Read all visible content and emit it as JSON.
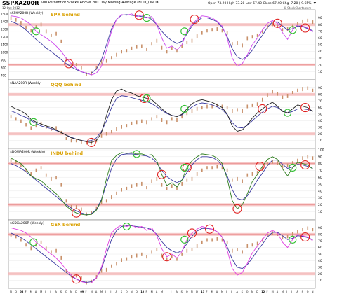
{
  "header": {
    "symbol": "$SPXA200R",
    "description": "(S&P 500 Percent of Stocks Above 200 Day Moving Average (EOD)) INDX",
    "date": "12-Oct-2012",
    "ohlc": "Open 73.20  High 73.20  Low 67.40  Close 67.40  Chg -7.20 (-9.65%) ▼",
    "watermark": "© StockCharts.com"
  },
  "colors": {
    "price_bar": "#c8906a",
    "pct_above_200dma": "#3a3aa0",
    "spx": "#cc44ee",
    "qqq": "#222222",
    "indu": "#2e7d1e",
    "gex": "#e040e0",
    "band": "#f4b8b8",
    "red_circle": "#e02020",
    "green_circle": "#30c030"
  },
  "x_axis": {
    "month_labels": [
      "N",
      "D",
      "08",
      "F",
      "M",
      "A",
      "M",
      "J",
      "J",
      "A",
      "S",
      "O",
      "N",
      "D",
      "09",
      "F",
      "M",
      "A",
      "M",
      "J",
      "J",
      "A",
      "S",
      "O",
      "N",
      "D",
      "10",
      "F",
      "M",
      "A",
      "M",
      "J",
      "J",
      "A",
      "S",
      "O",
      "N",
      "D",
      "11",
      "F",
      "M",
      "A",
      "M",
      "J",
      "J",
      "A",
      "S",
      "O",
      "N",
      "D",
      "12",
      "F",
      "M",
      "A",
      "M",
      "J",
      "J",
      "A",
      "S",
      "O",
      "N"
    ],
    "bold_labels": [
      "08",
      "09",
      "10",
      "11",
      "12"
    ]
  },
  "chart_data": [
    {
      "type": "line",
      "label": "$SPXA200R (Weekly)",
      "overlay_label": "SPX behind",
      "ylim": [
        0,
        100
      ],
      "y_ticks_right": [
        10,
        20,
        30,
        40,
        50,
        60,
        70,
        80,
        90
      ],
      "y_ticks_left": [
        700,
        800,
        900,
        1000,
        1100,
        1200,
        1300,
        1400,
        1500
      ],
      "bands": [
        80,
        20
      ],
      "series": [
        {
          "name": "SPX",
          "values": [
            93,
            92,
            90,
            85,
            80,
            70,
            65,
            60,
            55,
            48,
            40,
            30,
            22,
            15,
            10,
            8,
            5,
            8,
            18,
            42,
            70,
            88,
            95,
            94,
            96,
            92,
            94,
            90,
            92,
            80,
            60,
            45,
            48,
            42,
            50,
            70,
            80,
            88,
            93,
            92,
            90,
            85,
            78,
            60,
            30,
            18,
            22,
            35,
            50,
            60,
            72,
            82,
            86,
            82,
            68,
            58,
            72,
            80,
            78,
            75,
            69
          ]
        },
        {
          "name": "Pct above 200 DMA",
          "values": [
            85,
            82,
            78,
            72,
            65,
            58,
            52,
            45,
            40,
            34,
            28,
            22,
            17,
            13,
            10,
            7,
            8,
            14,
            28,
            50,
            74,
            88,
            94,
            95,
            94,
            93,
            92,
            91,
            88,
            80,
            70,
            62,
            56,
            52,
            55,
            66,
            78,
            86,
            90,
            90,
            88,
            84,
            76,
            62,
            44,
            32,
            28,
            33,
            42,
            54,
            64,
            76,
            84,
            84,
            78,
            72,
            74,
            78,
            77,
            74,
            71
          ]
        },
        {
          "name": "Price",
          "values": [
            1480,
            1460,
            1420,
            1360,
            1320,
            1370,
            1400,
            1310,
            1260,
            1280,
            1180,
            950,
            880,
            880,
            840,
            760,
            770,
            840,
            920,
            930,
            970,
            1010,
            1050,
            1060,
            1090,
            1110,
            1120,
            1080,
            1150,
            1190,
            1100,
            1050,
            1090,
            1060,
            1120,
            1170,
            1190,
            1250,
            1290,
            1320,
            1330,
            1340,
            1320,
            1290,
            1150,
            1160,
            1130,
            1220,
            1240,
            1260,
            1310,
            1370,
            1400,
            1380,
            1330,
            1340,
            1380,
            1410,
            1440,
            1450,
            1430
          ]
        }
      ]
    },
    {
      "type": "line",
      "label": "$NAA200R (Weekly)",
      "overlay_label": "QQQ behind",
      "ylim": [
        0,
        100
      ],
      "y_ticks_right": [
        10,
        20,
        30,
        40,
        50,
        60,
        70,
        80,
        90
      ],
      "bands": [
        80,
        20
      ],
      "series": [
        {
          "name": "QQQ",
          "values": [
            62,
            58,
            55,
            50,
            42,
            38,
            35,
            32,
            30,
            26,
            22,
            18,
            14,
            12,
            10,
            8,
            7,
            10,
            22,
            48,
            72,
            85,
            88,
            84,
            82,
            78,
            76,
            74,
            72,
            65,
            58,
            52,
            48,
            46,
            50,
            58,
            66,
            70,
            72,
            70,
            68,
            64,
            60,
            50,
            32,
            24,
            26,
            34,
            44,
            52,
            58,
            64,
            68,
            62,
            54,
            52,
            58,
            64,
            62,
            60,
            54
          ]
        },
        {
          "name": "Pct above 200 DMA",
          "values": [
            55,
            52,
            48,
            45,
            40,
            36,
            32,
            30,
            28,
            25,
            22,
            18,
            15,
            12,
            10,
            9,
            10,
            14,
            24,
            40,
            60,
            74,
            78,
            77,
            75,
            73,
            71,
            69,
            66,
            61,
            56,
            51,
            48,
            47,
            49,
            55,
            61,
            65,
            67,
            66,
            64,
            61,
            57,
            49,
            37,
            30,
            29,
            33,
            40,
            47,
            53,
            58,
            62,
            60,
            55,
            52,
            54,
            58,
            58,
            57,
            55
          ]
        },
        {
          "name": "Price",
          "values": [
            47,
            45,
            43,
            40,
            37,
            39,
            41,
            38,
            36,
            37,
            33,
            28,
            26,
            26,
            25,
            24,
            24,
            26,
            30,
            32,
            34,
            36,
            38,
            39,
            41,
            42,
            43,
            42,
            45,
            47,
            44,
            42,
            45,
            44,
            47,
            50,
            52,
            54,
            55,
            56,
            56,
            57,
            56,
            55,
            52,
            53,
            52,
            56,
            57,
            58,
            62,
            66,
            69,
            67,
            64,
            65,
            68,
            70,
            71,
            72,
            70
          ]
        }
      ]
    },
    {
      "type": "line",
      "label": "$DOWA200R (Weekly)",
      "overlay_label": "INDU behind",
      "ylim": [
        0,
        100
      ],
      "y_ticks_right": [
        10,
        20,
        30,
        40,
        50,
        60,
        70,
        80,
        90,
        100
      ],
      "bands": [
        80,
        20
      ],
      "series": [
        {
          "name": "INDU",
          "values": [
            88,
            84,
            80,
            72,
            62,
            58,
            55,
            48,
            42,
            36,
            28,
            18,
            12,
            8,
            6,
            5,
            6,
            12,
            26,
            58,
            84,
            92,
            96,
            95,
            96,
            94,
            94,
            92,
            93,
            84,
            64,
            48,
            52,
            46,
            56,
            74,
            84,
            90,
            94,
            93,
            92,
            88,
            80,
            58,
            26,
            14,
            20,
            36,
            54,
            64,
            76,
            86,
            90,
            86,
            72,
            62,
            74,
            82,
            80,
            78,
            72
          ]
        },
        {
          "name": "Pct above 200 DMA",
          "values": [
            80,
            77,
            73,
            68,
            62,
            56,
            50,
            44,
            38,
            32,
            26,
            20,
            15,
            11,
            8,
            6,
            7,
            13,
            28,
            50,
            73,
            87,
            93,
            94,
            94,
            93,
            92,
            91,
            88,
            81,
            70,
            61,
            56,
            52,
            56,
            67,
            78,
            86,
            90,
            90,
            89,
            85,
            77,
            62,
            42,
            29,
            27,
            33,
            44,
            56,
            66,
            77,
            85,
            85,
            79,
            73,
            75,
            79,
            78,
            76,
            73
          ]
        },
        {
          "name": "Price",
          "values": [
            88,
            87,
            84,
            80,
            77,
            80,
            82,
            76,
            73,
            74,
            68,
            55,
            50,
            50,
            48,
            44,
            45,
            49,
            54,
            55,
            58,
            61,
            64,
            65,
            67,
            68,
            69,
            66,
            71,
            73,
            68,
            65,
            67,
            65,
            69,
            72,
            73,
            77,
            80,
            82,
            82,
            83,
            82,
            80,
            72,
            73,
            71,
            76,
            77,
            78,
            81,
            85,
            87,
            86,
            83,
            84,
            86,
            88,
            90,
            91,
            90
          ]
        }
      ]
    },
    {
      "type": "line",
      "label": "$GDXA200R (Weekly)",
      "overlay_label": "GEX behind",
      "ylim": [
        0,
        100
      ],
      "y_ticks_right": [
        10,
        20,
        30,
        40,
        50,
        60,
        70,
        80,
        90
      ],
      "bands": [
        80,
        20
      ],
      "series": [
        {
          "name": "GEX",
          "values": [
            90,
            88,
            86,
            82,
            76,
            68,
            62,
            56,
            50,
            44,
            36,
            26,
            18,
            12,
            8,
            6,
            6,
            14,
            30,
            58,
            82,
            90,
            94,
            92,
            94,
            90,
            92,
            86,
            90,
            78,
            58,
            46,
            50,
            44,
            54,
            72,
            82,
            88,
            92,
            90,
            88,
            84,
            76,
            56,
            28,
            18,
            22,
            36,
            52,
            62,
            72,
            82,
            86,
            82,
            68,
            60,
            72,
            80,
            78,
            76,
            70
          ]
        },
        {
          "name": "Pct above 200 DMA",
          "values": [
            82,
            79,
            75,
            70,
            64,
            58,
            52,
            46,
            40,
            34,
            28,
            22,
            16,
            12,
            9,
            7,
            8,
            14,
            28,
            50,
            72,
            86,
            92,
            93,
            93,
            92,
            91,
            90,
            87,
            80,
            69,
            60,
            55,
            52,
            55,
            66,
            77,
            85,
            89,
            89,
            88,
            84,
            76,
            61,
            42,
            30,
            28,
            34,
            44,
            55,
            65,
            76,
            83,
            83,
            78,
            72,
            74,
            78,
            77,
            75,
            72
          ]
        },
        {
          "name": "Price",
          "values": [
            80,
            79,
            76,
            72,
            69,
            72,
            74,
            69,
            66,
            67,
            61,
            50,
            46,
            46,
            44,
            40,
            41,
            45,
            50,
            51,
            54,
            56,
            59,
            60,
            62,
            63,
            64,
            62,
            66,
            68,
            63,
            60,
            62,
            60,
            64,
            67,
            68,
            71,
            74,
            76,
            76,
            77,
            76,
            74,
            67,
            68,
            66,
            71,
            72,
            73,
            76,
            80,
            82,
            81,
            78,
            79,
            81,
            83,
            85,
            86,
            85
          ]
        }
      ]
    }
  ],
  "annotations": [
    {
      "panel": 0,
      "red": [
        11.5,
        25.5,
        36.5,
        53,
        58.5
      ],
      "green": [
        5,
        27,
        34.5,
        56
      ]
    },
    {
      "panel": 1,
      "red": [
        16,
        26.5,
        50,
        58.5
      ],
      "green": [
        4.5,
        27,
        34.5,
        55
      ]
    },
    {
      "panel": 2,
      "red": [
        13,
        30,
        35,
        45,
        49.5,
        58.5
      ],
      "green": [
        25,
        34.5,
        56
      ]
    },
    {
      "panel": 3,
      "red": [
        13,
        31,
        39.5,
        58.5
      ],
      "green": [
        4.5,
        23,
        34.5,
        56
      ],
      "red_low": [
        36
      ]
    }
  ]
}
